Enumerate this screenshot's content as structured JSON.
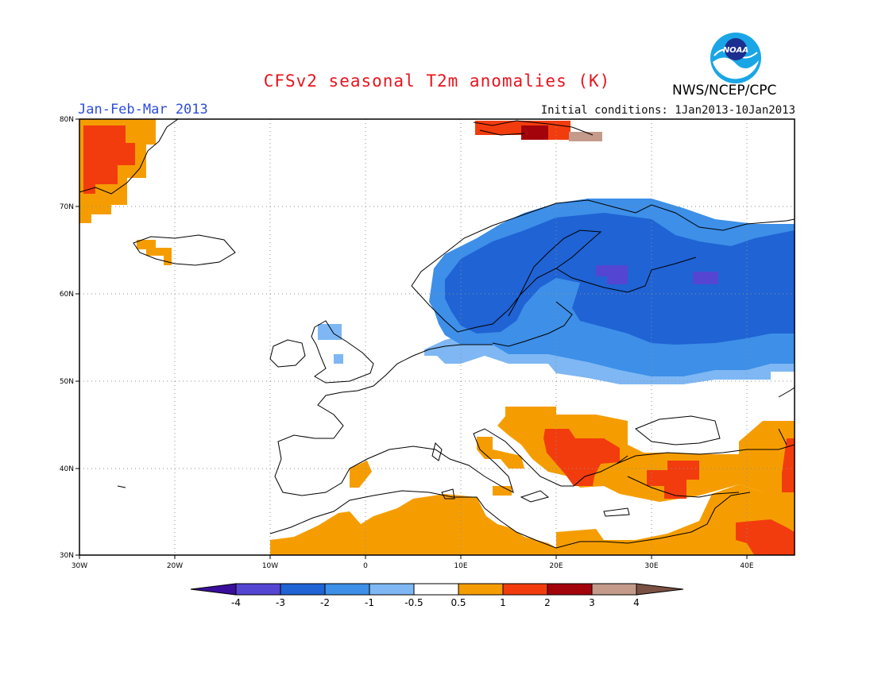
{
  "header": {
    "title": "CFSv2 seasonal T2m anomalies (K)",
    "period": "Jan-Feb-Mar 2013",
    "initial_conditions": "Initial conditions: 1Jan2013-10Jan2013",
    "agency": "NWS/NCEP/CPC",
    "logo_text": "NOAA"
  },
  "map": {
    "lon_range": [
      -30,
      45
    ],
    "lat_range": [
      30,
      80
    ],
    "lon_ticks": [
      "30W",
      "20W",
      "10W",
      "0",
      "10E",
      "20E",
      "30E",
      "40E"
    ],
    "lat_ticks": [
      "80N",
      "70N",
      "60N",
      "50N",
      "40N",
      "30N"
    ],
    "grid": "dotted",
    "anomaly_regions": [
      {
        "name": "greenland",
        "level": "warm1"
      },
      {
        "name": "greenland-core",
        "level": "warm2"
      },
      {
        "name": "iceland",
        "level": "warm1"
      },
      {
        "name": "svalbard",
        "level": "warm2"
      },
      {
        "name": "scandinavia-russia",
        "level": "cold-1"
      },
      {
        "name": "scandinavia-russia-core",
        "level": "cold-2"
      },
      {
        "name": "russia-spots",
        "level": "cold-3"
      },
      {
        "name": "balkans-turkey",
        "level": "warm1"
      },
      {
        "name": "balkans-core",
        "level": "warm2"
      },
      {
        "name": "north-africa",
        "level": "warm1"
      },
      {
        "name": "middle-east",
        "level": "warm2"
      }
    ]
  },
  "colorbar": {
    "labels": [
      "-4",
      "-3",
      "-2",
      "-1",
      "-0.5",
      "0.5",
      "1",
      "2",
      "3",
      "4"
    ],
    "colors": [
      "#3a0e9c",
      "#5445d2",
      "#1f63d4",
      "#3d8fe8",
      "#7eb7f3",
      "#ffffff",
      "#f59d00",
      "#f23c0e",
      "#a3030b",
      "#c49a8a",
      "#7b5143"
    ]
  }
}
